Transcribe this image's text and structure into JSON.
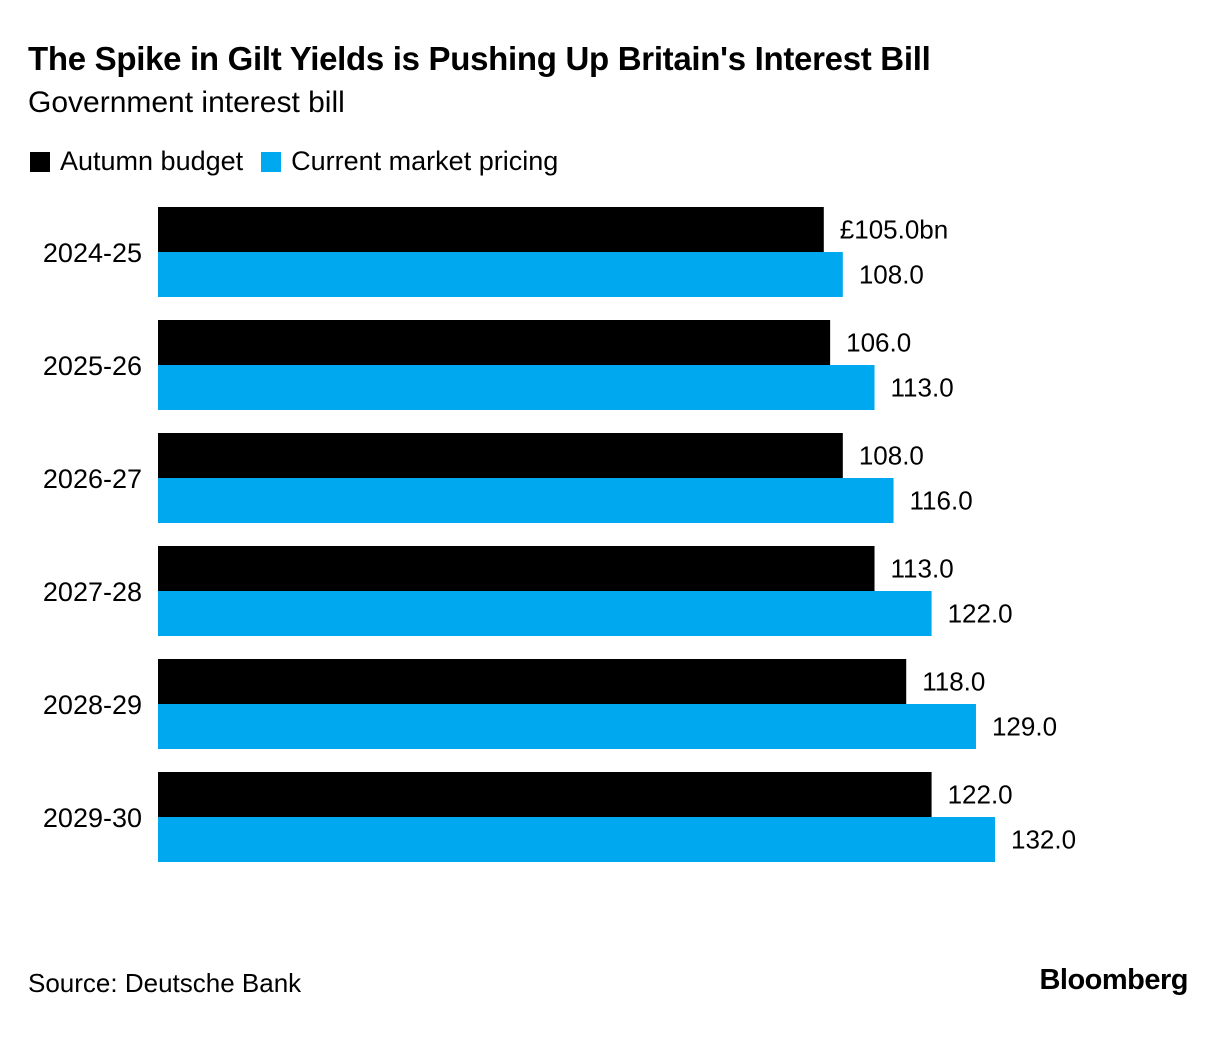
{
  "chart_data": {
    "type": "bar",
    "orientation": "horizontal",
    "title": "The Spike in Gilt Yields is Pushing Up Britain's Interest Bill",
    "subtitle": "Government interest bill",
    "categories": [
      "2024-25",
      "2025-26",
      "2026-27",
      "2027-28",
      "2028-29",
      "2029-30"
    ],
    "series": [
      {
        "name": "Autumn budget",
        "color": "#000000",
        "values": [
          105.0,
          106.0,
          108.0,
          113.0,
          118.0,
          122.0
        ],
        "labels": [
          "£105.0bn",
          "106.0",
          "108.0",
          "113.0",
          "118.0",
          "122.0"
        ]
      },
      {
        "name": "Current market pricing",
        "color": "#00a8f0",
        "values": [
          108.0,
          113.0,
          116.0,
          122.0,
          129.0,
          132.0
        ],
        "labels": [
          "108.0",
          "113.0",
          "116.0",
          "122.0",
          "129.0",
          "132.0"
        ]
      }
    ],
    "xlim": [
      0,
      132
    ],
    "grid": false,
    "legend_position": "top-left"
  },
  "footer": {
    "source": "Source: Deutsche Bank",
    "brand": "Bloomberg"
  }
}
